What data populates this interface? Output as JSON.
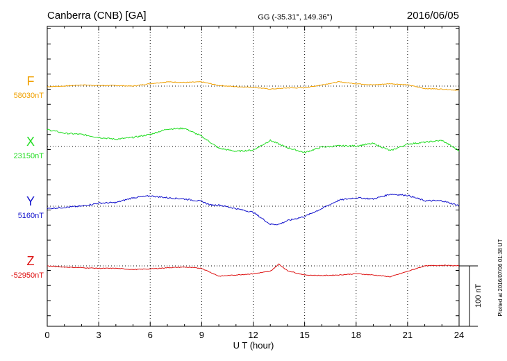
{
  "header": {
    "title": "Canberra (CNB)  [GA]",
    "coords": "GG (-35.31°, 149.36°)",
    "date": "2016/06/05"
  },
  "side_note": "Plotted at 2016/07/06 01:38 UT",
  "scale_bar_label": "100 nT",
  "chart_data": {
    "type": "line",
    "xlabel": "U T (hour)",
    "xlim": [
      0,
      24
    ],
    "x_ticks": [
      0,
      3,
      6,
      9,
      12,
      15,
      18,
      21,
      24
    ],
    "x_tick_labels": [
      "0",
      "3",
      "6",
      "9",
      "12",
      "15",
      "18",
      "21",
      "24"
    ],
    "grid": true,
    "units_note": "y values are deviations in nT from each series baseline; each panel spans ±100 nT around its baseline",
    "series": [
      {
        "name": "F",
        "baseline_label": "58030nT",
        "color": "#f0a000",
        "x": [
          0,
          1,
          2,
          3,
          4,
          5,
          6,
          7,
          8,
          9,
          10,
          11,
          12,
          13,
          14,
          15,
          16,
          17,
          18,
          19,
          20,
          21,
          22,
          23,
          24
        ],
        "values": [
          -1,
          0,
          2,
          1,
          1,
          0,
          4,
          7,
          6,
          7,
          1,
          -1,
          -2,
          -5,
          -3,
          -3,
          2,
          7,
          4,
          2,
          4,
          2,
          -4,
          -5,
          -7
        ]
      },
      {
        "name": "X",
        "baseline_label": "23150nT",
        "color": "#22dd22",
        "x": [
          0,
          1,
          2,
          3,
          4,
          5,
          6,
          7,
          8,
          9,
          10,
          11,
          12,
          13,
          14,
          15,
          16,
          17,
          18,
          19,
          20,
          21,
          22,
          23,
          24
        ],
        "values": [
          28,
          22,
          20,
          15,
          12,
          15,
          20,
          29,
          30,
          17,
          -3,
          -8,
          -6,
          10,
          -2,
          -10,
          -1,
          1,
          1,
          5,
          -7,
          4,
          7,
          10,
          -7
        ]
      },
      {
        "name": "Y",
        "baseline_label": "5160nT",
        "color": "#1111cc",
        "x": [
          0,
          1,
          2,
          3,
          4,
          5,
          6,
          7,
          8,
          9,
          9.5,
          10,
          11,
          12,
          13,
          13.5,
          14,
          15,
          16,
          17,
          18,
          19,
          20,
          21,
          22,
          23,
          24
        ],
        "values": [
          -4,
          -2,
          0,
          5,
          6,
          14,
          17,
          14,
          12,
          8,
          2,
          2,
          -4,
          -10,
          -30,
          -30,
          -24,
          -17,
          -4,
          10,
          14,
          12,
          20,
          18,
          9,
          9,
          1
        ]
      },
      {
        "name": "Z",
        "baseline_label": "-52950nT",
        "color": "#dd1111",
        "x": [
          0,
          1,
          2,
          3,
          4,
          5,
          6,
          7,
          8,
          9,
          10,
          11,
          12,
          13,
          13.5,
          14,
          15,
          16,
          17,
          18,
          19,
          20,
          21,
          22,
          23,
          24
        ],
        "values": [
          0,
          -2,
          -3,
          -4,
          -4,
          -6,
          -5,
          -3,
          -2,
          -4,
          -17,
          -15,
          -13,
          -9,
          3,
          -8,
          -15,
          -16,
          -15,
          -13,
          -15,
          -18,
          -9,
          0,
          1,
          0
        ]
      }
    ]
  }
}
